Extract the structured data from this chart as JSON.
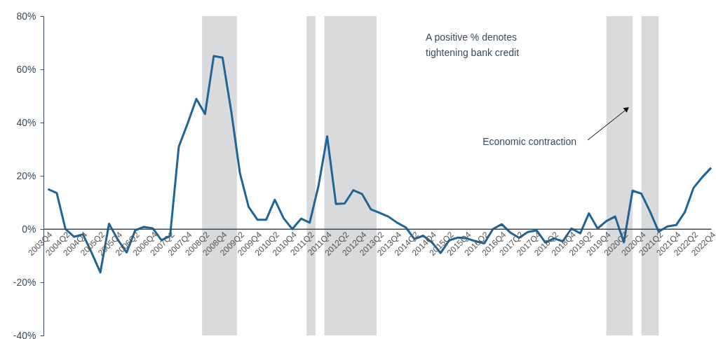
{
  "chart_data": {
    "type": "line",
    "x": [
      "2003-10",
      "2004-01",
      "2004-04",
      "2004-07",
      "2004-10",
      "2005-01",
      "2005-04",
      "2005-07",
      "2005-10",
      "2006-01",
      "2006-04",
      "2006-07",
      "2006-10",
      "2007-01",
      "2007-04",
      "2007-07",
      "2007-10",
      "2008-01",
      "2008-04",
      "2008-07",
      "2008-10",
      "2009-01",
      "2009-04",
      "2009-07",
      "2009-10",
      "2010-01",
      "2010-04",
      "2010-07",
      "2010-10",
      "2011-01",
      "2011-04",
      "2011-07",
      "2011-10",
      "2012-01",
      "2012-04",
      "2012-07",
      "2012-10",
      "2013-01",
      "2013-04",
      "2013-07",
      "2013-10",
      "2014-01",
      "2014-04",
      "2014-07",
      "2014-10",
      "2015-01",
      "2015-04",
      "2015-07",
      "2015-10",
      "2016-01",
      "2016-04",
      "2016-07",
      "2016-10",
      "2017-01",
      "2017-04",
      "2017-07",
      "2017-10",
      "2018-01",
      "2018-04",
      "2018-07",
      "2018-10",
      "2019-01",
      "2019-04",
      "2019-07",
      "2019-10",
      "2020-01",
      "2020-04",
      "2020-07",
      "2020-10",
      "2021-01",
      "2021-04",
      "2021-07",
      "2021-10",
      "2022-01",
      "2022-04",
      "2022-07",
      "2022-10"
    ],
    "series": [
      {
        "color": "#1f6496",
        "values": [
          15,
          13.5,
          0,
          -2.9,
          -2,
          -9,
          -16.3,
          2,
          -4,
          -8.8,
          -0.5,
          0.8,
          0.3,
          -4.2,
          -2.6,
          30.9,
          39.6,
          48.9,
          43.2,
          65,
          64.4,
          44,
          21,
          8.3,
          3.5,
          3.5,
          11,
          4.1,
          0,
          3.9,
          2.4,
          16,
          34.8,
          9.4,
          9.6,
          14.6,
          13.1,
          7.4,
          6.1,
          4.7,
          2.4,
          0.6,
          -3.8,
          -2.5,
          -5,
          -9,
          -4.2,
          -3.2,
          -3.5,
          -4.6,
          -5.4,
          0,
          1.8,
          -1.4,
          -3.3,
          -1.1,
          -0.5,
          -5.1,
          -3.5,
          -4.6,
          0.2,
          -1.6,
          5.9,
          0.2,
          3,
          4.7,
          -5,
          14.4,
          13.3,
          6.5,
          -1,
          1,
          1.5,
          6.5,
          15.5,
          19.5,
          23
        ]
      }
    ],
    "xlim": [
      "2003-08-15",
      "2022-10"
    ],
    "xticks": [
      {
        "value": "2003-10",
        "label": "2003Q4"
      },
      {
        "value": "2004-04",
        "label": "2004Q2"
      },
      {
        "value": "2004-10",
        "label": "2004Q4"
      },
      {
        "value": "2005-04",
        "label": "2005Q2"
      },
      {
        "value": "2005-10",
        "label": "2005Q4"
      },
      {
        "value": "2006-04",
        "label": "2006Q2"
      },
      {
        "value": "2006-10",
        "label": "2006Q4"
      },
      {
        "value": "2007-04",
        "label": "2007Q2"
      },
      {
        "value": "2007-10",
        "label": "2007Q4"
      },
      {
        "value": "2008-04",
        "label": "2008Q2"
      },
      {
        "value": "2008-10",
        "label": "2008Q4"
      },
      {
        "value": "2009-04",
        "label": "2009Q2"
      },
      {
        "value": "2009-10",
        "label": "2009Q4"
      },
      {
        "value": "2010-04",
        "label": "2010Q2"
      },
      {
        "value": "2010-10",
        "label": "2010Q4"
      },
      {
        "value": "2011-04",
        "label": "2011Q2"
      },
      {
        "value": "2011-10",
        "label": "2011Q4"
      },
      {
        "value": "2012-04",
        "label": "2012Q2"
      },
      {
        "value": "2012-10",
        "label": "2012Q4"
      },
      {
        "value": "2013-04",
        "label": "2013Q2"
      },
      {
        "value": "2013-10",
        "label": "2013Q4"
      },
      {
        "value": "2014-04",
        "label": "2014Q2"
      },
      {
        "value": "2014-10",
        "label": "2014Q4"
      },
      {
        "value": "2015-04",
        "label": "2015Q2"
      },
      {
        "value": "2015-10",
        "label": "2015Q4"
      },
      {
        "value": "2016-04",
        "label": "2016Q2"
      },
      {
        "value": "2016-10",
        "label": "2016Q4"
      },
      {
        "value": "2017-04",
        "label": "2017Q2"
      },
      {
        "value": "2017-10",
        "label": "2017Q4"
      },
      {
        "value": "2018-04",
        "label": "2018Q2"
      },
      {
        "value": "2018-10",
        "label": "2018Q4"
      },
      {
        "value": "2019-04",
        "label": "2019Q2"
      },
      {
        "value": "2019-10",
        "label": "2019Q4"
      },
      {
        "value": "2020-04",
        "label": "2020Q2"
      },
      {
        "value": "2020-10",
        "label": "2020Q4"
      },
      {
        "value": "2021-04",
        "label": "2021Q2"
      },
      {
        "value": "2021-10",
        "label": "2021Q4"
      },
      {
        "value": "2022-04",
        "label": "2022Q2"
      },
      {
        "value": "2022-10",
        "label": "2022Q4"
      }
    ],
    "ylim": [
      -40,
      80
    ],
    "yticks": [
      {
        "value": -40,
        "label": "-40%"
      },
      {
        "value": -20,
        "label": "-20%"
      },
      {
        "value": 0,
        "label": "0%"
      },
      {
        "value": 20,
        "label": "20%"
      },
      {
        "value": 40,
        "label": "40%"
      },
      {
        "value": 60,
        "label": "60%"
      },
      {
        "value": 80,
        "label": "80%"
      }
    ],
    "bands": [
      {
        "axis": "x",
        "from": "2008-03",
        "to": "2009-03",
        "color": "#d9dadc"
      },
      {
        "axis": "x",
        "from": "2011-03",
        "to": "2011-06",
        "color": "#d9dadc"
      },
      {
        "axis": "x",
        "from": "2011-09",
        "to": "2013-03",
        "color": "#d9dadc"
      },
      {
        "axis": "x",
        "from": "2019-10",
        "to": "2020-07",
        "color": "#d9dadc"
      },
      {
        "axis": "x",
        "from": "2020-10",
        "to": "2021-04",
        "color": "#d9dadc"
      }
    ],
    "annotations": [
      "A positive % denotes tightening bank credit",
      "Economic contraction"
    ],
    "grid": false,
    "marker": "none",
    "line_style": "solid"
  }
}
